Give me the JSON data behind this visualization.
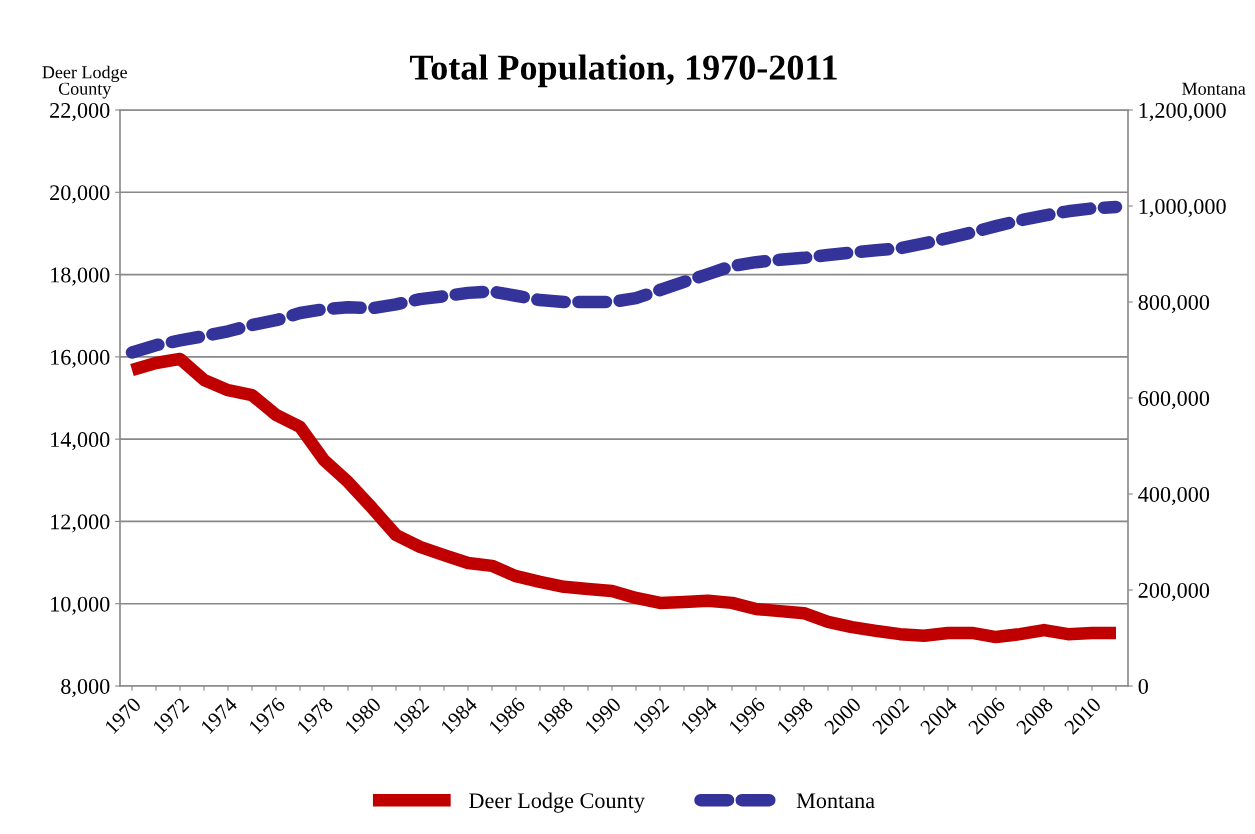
{
  "chart_data": {
    "type": "line",
    "title": "Total Population, 1970-2011",
    "ylabel": "Deer Lodge\nCounty",
    "y2label": "Montana",
    "categories": [
      "1970",
      null,
      "1972",
      null,
      "1974",
      null,
      "1976",
      null,
      "1978",
      null,
      "1980",
      null,
      "1982",
      null,
      "1984",
      null,
      "1986",
      null,
      "1988",
      null,
      "1990",
      null,
      "1992",
      null,
      "1994",
      null,
      "1996",
      null,
      "1998",
      null,
      "2000",
      null,
      "2002",
      null,
      "2004",
      null,
      "2006",
      null,
      "2008",
      null,
      "2010",
      null
    ],
    "series": [
      {
        "name": "Deer Lodge County",
        "color": "#c00000",
        "line_style": "solid",
        "values": [
          15680,
          15850,
          15950,
          15440,
          15190,
          15070,
          14590,
          14300,
          13490,
          12960,
          12330,
          11670,
          11380,
          11180,
          10990,
          10920,
          10670,
          10530,
          10410,
          10360,
          10310,
          10140,
          10020,
          10040,
          10070,
          10020,
          9870,
          9820,
          9770,
          9560,
          9430,
          9340,
          9260,
          9220,
          9290,
          9290,
          9190,
          9260,
          9360,
          9260,
          9290,
          9290
        ]
      },
      {
        "name": "Montana",
        "color": "#333399",
        "line_style": "dashed",
        "axis": "y2",
        "values": [
          695000,
          710000,
          720000,
          729000,
          739000,
          752000,
          762000,
          777000,
          785000,
          789000,
          787000,
          795000,
          806000,
          812000,
          819000,
          822000,
          813000,
          804000,
          800000,
          800000,
          800000,
          808000,
          825000,
          842000,
          858000,
          875000,
          883000,
          888000,
          892000,
          898000,
          903000,
          908000,
          912000,
          922000,
          933000,
          945000,
          958000,
          970000,
          980000,
          989000,
          995000,
          998000
        ]
      }
    ],
    "ylim": [
      8000,
      22000
    ],
    "yticks": [
      {
        "value": 8000,
        "label": "8,000"
      },
      {
        "value": 10000,
        "label": "10,000"
      },
      {
        "value": 12000,
        "label": "12,000"
      },
      {
        "value": 14000,
        "label": "14,000"
      },
      {
        "value": 16000,
        "label": "16,000"
      },
      {
        "value": 18000,
        "label": "18,000"
      },
      {
        "value": 20000,
        "label": "20,000"
      },
      {
        "value": 22000,
        "label": "22,000"
      }
    ],
    "y2lim": [
      0,
      1200000
    ],
    "y2ticks": [
      0,
      {
        "value": 200000,
        "label": "200,000"
      },
      {
        "value": 400000,
        "label": "400,000"
      },
      {
        "value": 600000,
        "label": "600,000"
      },
      {
        "value": 800000,
        "label": "800,000"
      },
      {
        "value": 1000000,
        "label": "1,000,000"
      },
      {
        "value": 1200000,
        "label": "1,200,000"
      }
    ],
    "grid": "y",
    "legend": "bottom",
    "marker": "none"
  }
}
